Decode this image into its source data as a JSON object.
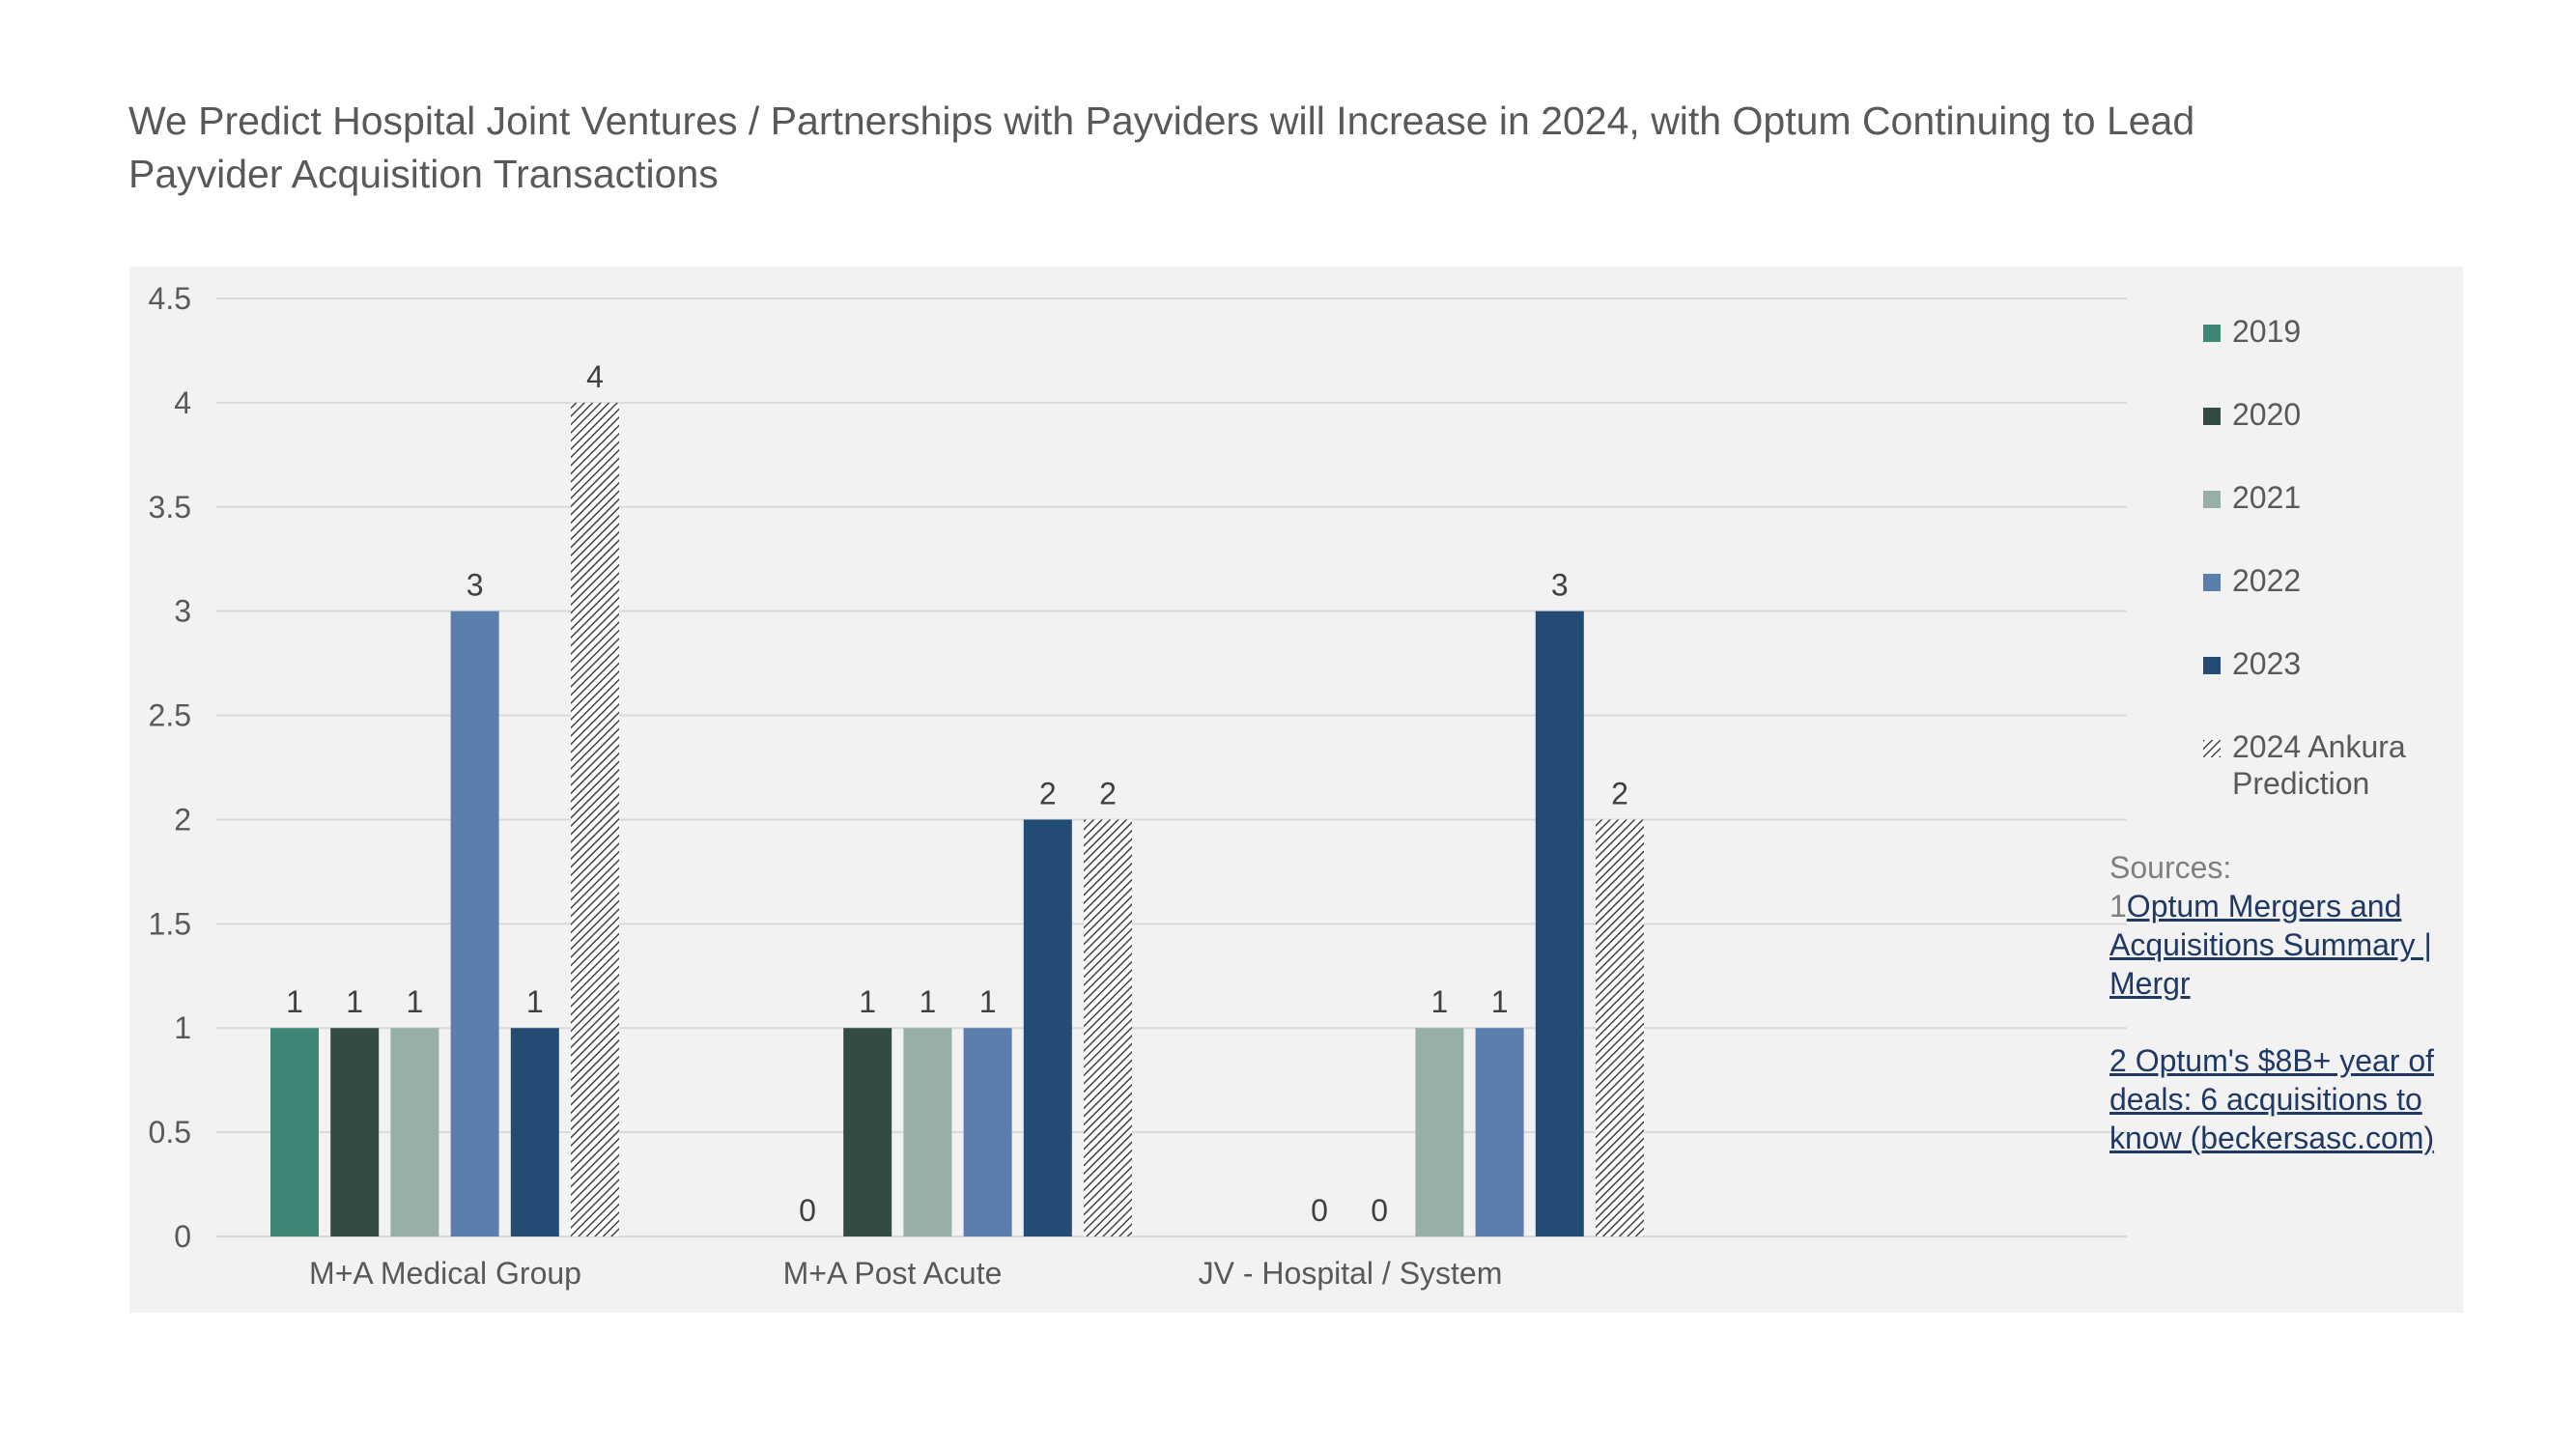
{
  "title": "We Predict Hospital Joint Ventures / Partnerships with Payviders will Increase in 2024, with Optum Continuing to Lead Payvider Acquisition Transactions",
  "chart_data": {
    "type": "bar",
    "categories": [
      "M+A Medical Group",
      "M+A Post Acute",
      "JV - Hospital / System"
    ],
    "series": [
      {
        "name": "2019",
        "values": [
          1,
          0,
          0
        ],
        "color": "#3e8675",
        "pattern": "solid"
      },
      {
        "name": "2020",
        "values": [
          1,
          1,
          0
        ],
        "color": "#344a45",
        "pattern": "solid"
      },
      {
        "name": "2021",
        "values": [
          1,
          1,
          1
        ],
        "color": "#98afa9",
        "pattern": "solid"
      },
      {
        "name": "2022",
        "values": [
          3,
          1,
          1
        ],
        "color": "#5a7fac",
        "pattern": "solid"
      },
      {
        "name": "2023",
        "values": [
          1,
          2,
          3
        ],
        "color": "#234c74",
        "pattern": "solid"
      },
      {
        "name": "2024 Ankura Prediction",
        "values": [
          4,
          2,
          2
        ],
        "color": "#404040",
        "pattern": "diagonal-hatch"
      }
    ],
    "data_labels": [
      [
        "1",
        "1",
        "1",
        "3",
        "1",
        "4"
      ],
      [
        "0",
        "1",
        "1",
        "1",
        "2",
        "2"
      ],
      [
        "0",
        "0",
        "1",
        "1",
        "3",
        "2"
      ]
    ],
    "ylim": [
      0,
      4.5
    ],
    "yticks": [
      "0",
      "0.5",
      "1",
      "1.5",
      "2",
      "2.5",
      "3",
      "3.5",
      "4",
      "4.5"
    ],
    "ytick_values": [
      0,
      0.5,
      1,
      1.5,
      2,
      2.5,
      3,
      3.5,
      4,
      4.5
    ],
    "grid": true,
    "legend_position": "right",
    "xlabel": "",
    "ylabel": ""
  },
  "legend": {
    "items": [
      "2019",
      "2020",
      "2021",
      "2022",
      "2023",
      "2024 Ankura Prediction"
    ]
  },
  "sources": {
    "heading": "Sources:",
    "s1_num": "1",
    "s1_link": "Optum Mergers and Acquisitions Summary | Mergr",
    "s2_link": "2 Optum's $8B+ year of deals: 6 acquisitions to know (beckersasc.com)"
  }
}
